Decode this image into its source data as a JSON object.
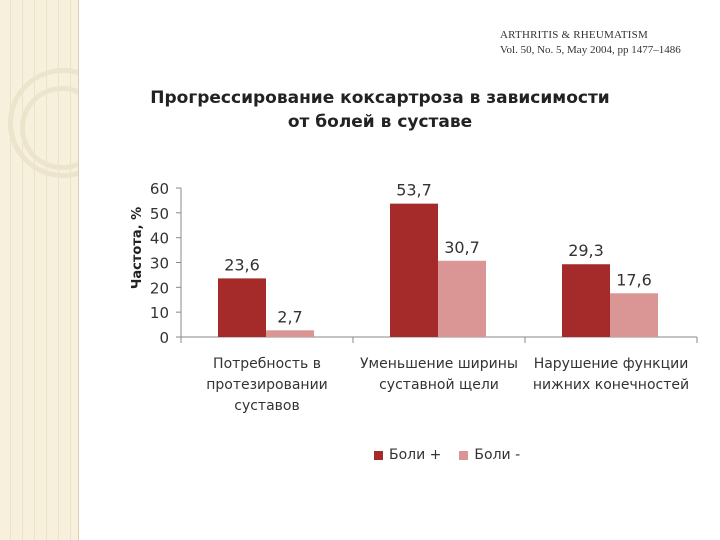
{
  "journal": {
    "name": "ARTHRITIS & RHEUMATISM",
    "citation": "Vol. 50, No. 5, May 2004, pp 1477–1486"
  },
  "colors": {
    "series_pain_plus": "#a52a2a",
    "series_pain_minus": "#d99694",
    "grid": "#c0c0c0"
  },
  "chart_data": {
    "type": "bar",
    "title_lines": [
      "Прогрессирование коксартроза в зависимости",
      "от болей в суставе"
    ],
    "ylabel": "Частота, %",
    "xlabel": "",
    "ylim": [
      0,
      60
    ],
    "yticks": [
      0,
      10,
      20,
      30,
      40,
      50,
      60
    ],
    "categories": [
      [
        "Потребность в",
        "протезировании",
        "суставов"
      ],
      [
        "Уменьшение ширины",
        "суставной щели"
      ],
      [
        "Нарушение функции",
        "нижних конечностей"
      ]
    ],
    "series": [
      {
        "name": "Боли +",
        "values": [
          23.6,
          53.7,
          29.3
        ],
        "labels": [
          "23,6",
          "53,7",
          "29,3"
        ]
      },
      {
        "name": "Боли -",
        "values": [
          2.7,
          30.7,
          17.6
        ],
        "labels": [
          "2,7",
          "30,7",
          "17,6"
        ]
      }
    ],
    "legend_position": "bottom"
  }
}
